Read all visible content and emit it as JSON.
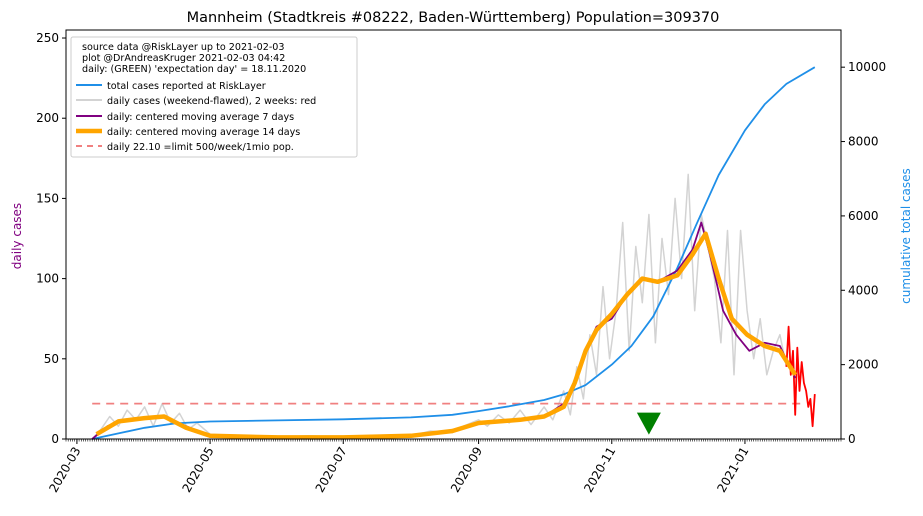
{
  "chart_data": {
    "type": "line",
    "title": "Mannheim (Stadtkreis #08222, Baden-Württemberg) Population=309370",
    "ylabel_left": "daily cases",
    "ylabel_right": "cumulative total cases",
    "ylim_left": [
      0,
      255
    ],
    "ylim_right": [
      0,
      11000
    ],
    "xlim": [
      "2020-02-25",
      "2021-02-14"
    ],
    "yticks_left": [
      0,
      50,
      100,
      150,
      200,
      250
    ],
    "yticks_right": [
      0,
      2000,
      4000,
      6000,
      8000,
      10000
    ],
    "xticks": [
      "2020-03",
      "2020-05",
      "2020-07",
      "2020-09",
      "2020-11",
      "2021-01"
    ],
    "xtick_dates": [
      "2020-03-01",
      "2020-05-01",
      "2020-07-01",
      "2020-09-01",
      "2020-11-01",
      "2021-01-01"
    ],
    "info_lines": [
      "source data @RiskLayer up to 2021-02-03",
      "plot @DrAndreasKruger 2021-02-03 04:42",
      "daily: (GREEN) 'expectation day' = 18.11.2020"
    ],
    "legend_position": "top-left",
    "expectation_day": "2020-11-18",
    "limit_value": 22.1,
    "series": [
      {
        "name": "total cases reported at RiskLayer",
        "axis": "right",
        "color": "#1f8fe8",
        "x": [
          "2020-03-08",
          "2020-03-20",
          "2020-04-01",
          "2020-04-15",
          "2020-05-01",
          "2020-06-01",
          "2020-07-01",
          "2020-08-01",
          "2020-08-20",
          "2020-09-01",
          "2020-09-15",
          "2020-10-01",
          "2020-10-10",
          "2020-10-20",
          "2020-11-01",
          "2020-11-10",
          "2020-11-20",
          "2020-12-01",
          "2020-12-10",
          "2020-12-20",
          "2021-01-01",
          "2021-01-10",
          "2021-01-20",
          "2021-02-02"
        ],
        "y": [
          0,
          150,
          300,
          420,
          470,
          500,
          530,
          580,
          650,
          750,
          880,
          1050,
          1200,
          1450,
          2000,
          2500,
          3300,
          4600,
          5800,
          7100,
          8300,
          9000,
          9550,
          10000
        ]
      },
      {
        "name": "daily cases (weekend-flawed), 2 weeks: red",
        "axis": "left",
        "color": "#d3d3d3",
        "recent_color": "#ff0000",
        "x": [
          "2020-03-08",
          "2020-03-12",
          "2020-03-16",
          "2020-03-20",
          "2020-03-24",
          "2020-03-28",
          "2020-04-01",
          "2020-04-05",
          "2020-04-09",
          "2020-04-13",
          "2020-04-17",
          "2020-04-21",
          "2020-04-25",
          "2020-05-01",
          "2020-05-10",
          "2020-05-20",
          "2020-06-01",
          "2020-06-15",
          "2020-07-01",
          "2020-07-15",
          "2020-08-01",
          "2020-08-10",
          "2020-08-20",
          "2020-08-25",
          "2020-09-01",
          "2020-09-05",
          "2020-09-10",
          "2020-09-15",
          "2020-09-20",
          "2020-09-25",
          "2020-10-01",
          "2020-10-05",
          "2020-10-10",
          "2020-10-13",
          "2020-10-16",
          "2020-10-19",
          "2020-10-22",
          "2020-10-25",
          "2020-10-28",
          "2020-10-31",
          "2020-11-03",
          "2020-11-06",
          "2020-11-09",
          "2020-11-12",
          "2020-11-15",
          "2020-11-18",
          "2020-11-21",
          "2020-11-24",
          "2020-11-27",
          "2020-11-30",
          "2020-12-03",
          "2020-12-06",
          "2020-12-09",
          "2020-12-12",
          "2020-12-15",
          "2020-12-18",
          "2020-12-21",
          "2020-12-24",
          "2020-12-27",
          "2020-12-30",
          "2021-01-02",
          "2021-01-05",
          "2021-01-08",
          "2021-01-11",
          "2021-01-14",
          "2021-01-17",
          "2021-01-20"
        ],
        "y": [
          0,
          6,
          14,
          8,
          18,
          12,
          20,
          8,
          22,
          10,
          16,
          6,
          10,
          3,
          2,
          1,
          1,
          2,
          1,
          1,
          2,
          5,
          4,
          8,
          12,
          8,
          15,
          10,
          18,
          9,
          20,
          12,
          30,
          15,
          45,
          25,
          65,
          40,
          95,
          50,
          80,
          135,
          55,
          120,
          85,
          140,
          60,
          125,
          90,
          150,
          100,
          165,
          80,
          140,
          120,
          100,
          60,
          130,
          40,
          130,
          80,
          50,
          75,
          40,
          55,
          65,
          45
        ]
      },
      {
        "name": "daily: centered moving average 7 days",
        "axis": "left",
        "color": "#800080",
        "x": [
          "2020-03-08",
          "2020-03-15",
          "2020-03-22",
          "2020-04-01",
          "2020-04-10",
          "2020-04-20",
          "2020-05-01",
          "2020-06-01",
          "2020-07-01",
          "2020-08-01",
          "2020-08-20",
          "2020-09-01",
          "2020-09-20",
          "2020-10-01",
          "2020-10-10",
          "2020-10-15",
          "2020-10-20",
          "2020-10-25",
          "2020-11-01",
          "2020-11-08",
          "2020-11-15",
          "2020-11-22",
          "2020-12-01",
          "2020-12-08",
          "2020-12-12",
          "2020-12-16",
          "2020-12-22",
          "2020-12-28",
          "2021-01-03",
          "2021-01-10",
          "2021-01-17",
          "2021-01-24"
        ],
        "y": [
          0,
          8,
          12,
          13,
          14,
          8,
          2,
          1,
          1,
          2,
          5,
          10,
          12,
          14,
          22,
          35,
          55,
          70,
          75,
          90,
          100,
          98,
          105,
          118,
          135,
          115,
          80,
          65,
          55,
          60,
          58,
          38
        ]
      },
      {
        "name": "daily: centered moving average 14 days",
        "axis": "left",
        "color": "#ffa500",
        "x": [
          "2020-03-10",
          "2020-03-20",
          "2020-04-01",
          "2020-04-10",
          "2020-04-20",
          "2020-05-01",
          "2020-06-01",
          "2020-07-01",
          "2020-08-01",
          "2020-08-20",
          "2020-09-01",
          "2020-09-20",
          "2020-10-01",
          "2020-10-10",
          "2020-10-15",
          "2020-10-20",
          "2020-10-25",
          "2020-11-01",
          "2020-11-08",
          "2020-11-15",
          "2020-11-22",
          "2020-12-01",
          "2020-12-08",
          "2020-12-14",
          "2020-12-20",
          "2020-12-26",
          "2021-01-02",
          "2021-01-10",
          "2021-01-17",
          "2021-01-24"
        ],
        "y": [
          3,
          11,
          13,
          14,
          7,
          2,
          1,
          1,
          2,
          5,
          10,
          12,
          14,
          20,
          35,
          55,
          68,
          78,
          90,
          100,
          98,
          102,
          115,
          128,
          100,
          75,
          65,
          58,
          55,
          40
        ]
      },
      {
        "name": "daily 22.10 =limit 500/week/1mio pop.",
        "axis": "left",
        "color": "#f08080",
        "x": [
          "2020-03-08",
          "2021-01-28"
        ],
        "y": [
          22.1,
          22.1
        ]
      }
    ],
    "recent_daily": {
      "color": "#ff0000",
      "x": [
        "2021-01-20",
        "2021-01-21",
        "2021-01-22",
        "2021-01-23",
        "2021-01-24",
        "2021-01-25",
        "2021-01-26",
        "2021-01-27",
        "2021-01-28",
        "2021-01-29",
        "2021-01-30",
        "2021-01-31",
        "2021-02-01",
        "2021-02-02"
      ],
      "y": [
        45,
        70,
        40,
        55,
        15,
        57,
        30,
        48,
        35,
        30,
        20,
        25,
        8,
        28
      ]
    }
  }
}
